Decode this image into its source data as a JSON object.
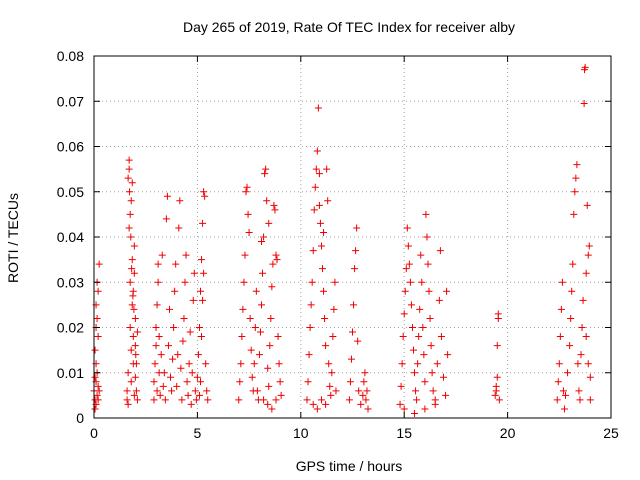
{
  "chart_data": {
    "type": "scatter",
    "title": "Day 265 of 2019, Rate Of TEC Index for receiver alby",
    "xlabel": "GPS time / hours",
    "ylabel": "ROTI / TECUs",
    "xlim": [
      0,
      25
    ],
    "ylim": [
      0,
      0.08
    ],
    "xticks": [
      0,
      5,
      10,
      15,
      20,
      25
    ],
    "xtick_labels": [
      "0",
      "5",
      "10",
      "15",
      "20",
      "25"
    ],
    "yticks": [
      0,
      0.01,
      0.02,
      0.03,
      0.04,
      0.05,
      0.06,
      0.07,
      0.08
    ],
    "ytick_labels": [
      "0",
      "0.01",
      "0.02",
      "0.03",
      "0.04",
      "0.05",
      "0.06",
      "0.07",
      "0.08"
    ],
    "grid": true,
    "marker": "plus",
    "color": "#ee0000",
    "series": [
      {
        "name": "ROTI",
        "points": [
          [
            0.0,
            0.006
          ],
          [
            0.05,
            0.004
          ],
          [
            0.05,
            0.009
          ],
          [
            0.05,
            0.015
          ],
          [
            0.1,
            0.003
          ],
          [
            0.1,
            0.008
          ],
          [
            0.1,
            0.012
          ],
          [
            0.1,
            0.02
          ],
          [
            0.1,
            0.025
          ],
          [
            0.15,
            0.005
          ],
          [
            0.15,
            0.01
          ],
          [
            0.15,
            0.03
          ],
          [
            0.2,
            0.004
          ],
          [
            0.2,
            0.007
          ],
          [
            0.2,
            0.018
          ],
          [
            0.25,
            0.034
          ],
          [
            0.2,
            0.028
          ],
          [
            0.15,
            0.022
          ],
          [
            0.05,
            0.002
          ],
          [
            0.25,
            0.006
          ],
          [
            1.6,
            0.004
          ],
          [
            1.6,
            0.006
          ],
          [
            1.65,
            0.01
          ],
          [
            1.65,
            0.053
          ],
          [
            1.7,
            0.057
          ],
          [
            1.7,
            0.055
          ],
          [
            1.7,
            0.042
          ],
          [
            1.75,
            0.045
          ],
          [
            1.75,
            0.03
          ],
          [
            1.75,
            0.02
          ],
          [
            1.8,
            0.015
          ],
          [
            1.8,
            0.008
          ],
          [
            1.8,
            0.048
          ],
          [
            1.85,
            0.025
          ],
          [
            1.85,
            0.035
          ],
          [
            1.85,
            0.052
          ],
          [
            1.9,
            0.012
          ],
          [
            1.9,
            0.018
          ],
          [
            1.9,
            0.028
          ],
          [
            1.95,
            0.005
          ],
          [
            1.95,
            0.032
          ],
          [
            1.95,
            0.038
          ],
          [
            2.0,
            0.009
          ],
          [
            2.0,
            0.022
          ],
          [
            2.0,
            0.016
          ],
          [
            2.05,
            0.006
          ],
          [
            2.05,
            0.012
          ],
          [
            2.1,
            0.004
          ],
          [
            2.1,
            0.019
          ],
          [
            1.65,
            0.003
          ],
          [
            1.72,
            0.05
          ],
          [
            1.78,
            0.04
          ],
          [
            1.82,
            0.033
          ],
          [
            1.88,
            0.027
          ],
          [
            1.93,
            0.024
          ],
          [
            2.02,
            0.014
          ],
          [
            2.9,
            0.004
          ],
          [
            2.9,
            0.008
          ],
          [
            2.95,
            0.012
          ],
          [
            3.0,
            0.016
          ],
          [
            3.0,
            0.02
          ],
          [
            3.05,
            0.006
          ],
          [
            3.05,
            0.025
          ],
          [
            3.1,
            0.03
          ],
          [
            3.1,
            0.034
          ],
          [
            3.15,
            0.01
          ],
          [
            3.15,
            0.018
          ],
          [
            3.2,
            0.005
          ],
          [
            3.25,
            0.014
          ],
          [
            3.3,
            0.036
          ],
          [
            3.35,
            0.007
          ],
          [
            3.4,
            0.01
          ],
          [
            3.45,
            0.004
          ],
          [
            3.5,
            0.044
          ],
          [
            3.55,
            0.049
          ],
          [
            3.6,
            0.016
          ],
          [
            3.65,
            0.024
          ],
          [
            3.7,
            0.009
          ],
          [
            3.75,
            0.006
          ],
          [
            3.8,
            0.013
          ],
          [
            3.85,
            0.02
          ],
          [
            3.9,
            0.028
          ],
          [
            3.95,
            0.034
          ],
          [
            4.0,
            0.007
          ],
          [
            4.05,
            0.014
          ],
          [
            4.1,
            0.042
          ],
          [
            4.15,
            0.048
          ],
          [
            4.2,
            0.011
          ],
          [
            4.25,
            0.004
          ],
          [
            4.3,
            0.017
          ],
          [
            4.35,
            0.022
          ],
          [
            4.4,
            0.03
          ],
          [
            4.45,
            0.036
          ],
          [
            4.5,
            0.008
          ],
          [
            4.55,
            0.005
          ],
          [
            4.6,
            0.012
          ],
          [
            4.65,
            0.019
          ],
          [
            4.7,
            0.003
          ],
          [
            4.75,
            0.01
          ],
          [
            4.8,
            0.026
          ],
          [
            4.85,
            0.032
          ],
          [
            4.9,
            0.006
          ],
          [
            4.95,
            0.004
          ],
          [
            5.0,
            0.009
          ],
          [
            5.05,
            0.014
          ],
          [
            5.1,
            0.02
          ],
          [
            5.15,
            0.028
          ],
          [
            5.2,
            0.035
          ],
          [
            5.25,
            0.043
          ],
          [
            5.3,
            0.05
          ],
          [
            5.35,
            0.049
          ],
          [
            5.3,
            0.032
          ],
          [
            5.25,
            0.026
          ],
          [
            5.2,
            0.018
          ],
          [
            5.15,
            0.008
          ],
          [
            5.1,
            0.005
          ],
          [
            5.4,
            0.012
          ],
          [
            5.45,
            0.006
          ],
          [
            5.5,
            0.004
          ],
          [
            7.0,
            0.004
          ],
          [
            7.05,
            0.008
          ],
          [
            7.1,
            0.012
          ],
          [
            7.15,
            0.018
          ],
          [
            7.2,
            0.024
          ],
          [
            7.25,
            0.03
          ],
          [
            7.3,
            0.036
          ],
          [
            7.35,
            0.05
          ],
          [
            7.4,
            0.051
          ],
          [
            7.45,
            0.045
          ],
          [
            7.5,
            0.041
          ],
          [
            7.55,
            0.022
          ],
          [
            7.6,
            0.015
          ],
          [
            7.65,
            0.009
          ],
          [
            7.7,
            0.006
          ],
          [
            7.75,
            0.012
          ],
          [
            7.8,
            0.02
          ],
          [
            7.85,
            0.028
          ],
          [
            7.9,
            0.006
          ],
          [
            7.95,
            0.004
          ],
          [
            8.0,
            0.014
          ],
          [
            8.05,
            0.019
          ],
          [
            8.1,
            0.025
          ],
          [
            8.15,
            0.032
          ],
          [
            8.2,
            0.04
          ],
          [
            8.25,
            0.054
          ],
          [
            8.3,
            0.055
          ],
          [
            8.35,
            0.048
          ],
          [
            8.4,
            0.011
          ],
          [
            8.45,
            0.007
          ],
          [
            8.5,
            0.016
          ],
          [
            8.55,
            0.022
          ],
          [
            8.6,
            0.029
          ],
          [
            8.65,
            0.034
          ],
          [
            8.7,
            0.047
          ],
          [
            8.75,
            0.046
          ],
          [
            8.8,
            0.036
          ],
          [
            8.85,
            0.035
          ],
          [
            8.9,
            0.018
          ],
          [
            8.95,
            0.012
          ],
          [
            9.0,
            0.008
          ],
          [
            9.05,
            0.005
          ],
          [
            8.2,
            0.004
          ],
          [
            8.4,
            0.003
          ],
          [
            8.6,
            0.002
          ],
          [
            8.8,
            0.004
          ],
          [
            8.45,
            0.043
          ],
          [
            8.1,
            0.039
          ],
          [
            10.3,
            0.004
          ],
          [
            10.35,
            0.008
          ],
          [
            10.4,
            0.014
          ],
          [
            10.45,
            0.02
          ],
          [
            10.5,
            0.025
          ],
          [
            10.55,
            0.03
          ],
          [
            10.6,
            0.037
          ],
          [
            10.65,
            0.046
          ],
          [
            10.7,
            0.051
          ],
          [
            10.75,
            0.055
          ],
          [
            10.8,
            0.059
          ],
          [
            10.85,
            0.0685
          ],
          [
            10.9,
            0.054
          ],
          [
            10.95,
            0.043
          ],
          [
            11.0,
            0.038
          ],
          [
            11.05,
            0.033
          ],
          [
            11.1,
            0.028
          ],
          [
            11.15,
            0.022
          ],
          [
            11.2,
            0.016
          ],
          [
            11.25,
            0.055
          ],
          [
            11.3,
            0.048
          ],
          [
            11.35,
            0.012
          ],
          [
            11.4,
            0.007
          ],
          [
            11.45,
            0.005
          ],
          [
            11.5,
            0.01
          ],
          [
            11.55,
            0.018
          ],
          [
            11.6,
            0.024
          ],
          [
            11.65,
            0.03
          ],
          [
            11.7,
            0.006
          ],
          [
            10.6,
            0.003
          ],
          [
            10.8,
            0.002
          ],
          [
            11.0,
            0.004
          ],
          [
            11.2,
            0.003
          ],
          [
            10.9,
            0.047
          ],
          [
            11.1,
            0.041
          ],
          [
            12.35,
            0.004
          ],
          [
            12.4,
            0.008
          ],
          [
            12.45,
            0.013
          ],
          [
            12.5,
            0.019
          ],
          [
            12.55,
            0.025
          ],
          [
            12.6,
            0.033
          ],
          [
            12.65,
            0.037
          ],
          [
            12.7,
            0.042
          ],
          [
            12.75,
            0.017
          ],
          [
            12.8,
            0.006
          ],
          [
            12.9,
            0.003
          ],
          [
            13.0,
            0.005
          ],
          [
            13.05,
            0.008
          ],
          [
            13.1,
            0.01
          ],
          [
            13.15,
            0.004
          ],
          [
            13.2,
            0.006
          ],
          [
            13.25,
            0.002
          ],
          [
            14.8,
            0.003
          ],
          [
            14.85,
            0.007
          ],
          [
            14.9,
            0.012
          ],
          [
            14.95,
            0.018
          ],
          [
            15.0,
            0.023
          ],
          [
            15.05,
            0.028
          ],
          [
            15.1,
            0.033
          ],
          [
            15.15,
            0.042
          ],
          [
            15.2,
            0.038
          ],
          [
            15.25,
            0.034
          ],
          [
            15.3,
            0.03
          ],
          [
            15.35,
            0.025
          ],
          [
            15.4,
            0.02
          ],
          [
            15.45,
            0.015
          ],
          [
            15.5,
            0.01
          ],
          [
            15.55,
            0.006
          ],
          [
            15.6,
            0.004
          ],
          [
            15.65,
            0.012
          ],
          [
            15.7,
            0.018
          ],
          [
            15.75,
            0.024
          ],
          [
            15.8,
            0.036
          ],
          [
            15.85,
            0.03
          ],
          [
            15.9,
            0.02
          ],
          [
            15.95,
            0.014
          ],
          [
            16.0,
            0.008
          ],
          [
            16.05,
            0.045
          ],
          [
            16.1,
            0.04
          ],
          [
            16.15,
            0.034
          ],
          [
            16.2,
            0.028
          ],
          [
            16.25,
            0.022
          ],
          [
            16.3,
            0.016
          ],
          [
            16.35,
            0.01
          ],
          [
            16.4,
            0.006
          ],
          [
            16.5,
            0.004
          ],
          [
            16.6,
            0.012
          ],
          [
            16.7,
            0.026
          ],
          [
            16.75,
            0.037
          ],
          [
            16.8,
            0.018
          ],
          [
            16.9,
            0.009
          ],
          [
            17.0,
            0.005
          ],
          [
            17.05,
            0.028
          ],
          [
            17.1,
            0.014
          ],
          [
            15.0,
            0.002
          ],
          [
            15.5,
            0.001
          ],
          [
            16.0,
            0.002
          ],
          [
            16.5,
            0.003
          ],
          [
            19.4,
            0.005
          ],
          [
            19.45,
            0.007
          ],
          [
            19.5,
            0.009
          ],
          [
            19.5,
            0.016
          ],
          [
            19.55,
            0.022
          ],
          [
            19.55,
            0.023
          ],
          [
            19.6,
            0.004
          ],
          [
            19.45,
            0.006
          ],
          [
            22.4,
            0.004
          ],
          [
            22.45,
            0.008
          ],
          [
            22.5,
            0.012
          ],
          [
            22.55,
            0.018
          ],
          [
            22.6,
            0.024
          ],
          [
            22.65,
            0.03
          ],
          [
            22.7,
            0.006
          ],
          [
            22.75,
            0.002
          ],
          [
            22.8,
            0.005
          ],
          [
            22.9,
            0.01
          ],
          [
            23.0,
            0.016
          ],
          [
            23.05,
            0.022
          ],
          [
            23.1,
            0.028
          ],
          [
            23.15,
            0.034
          ],
          [
            23.2,
            0.045
          ],
          [
            23.25,
            0.05
          ],
          [
            23.3,
            0.053
          ],
          [
            23.35,
            0.056
          ],
          [
            23.4,
            0.012
          ],
          [
            23.45,
            0.006
          ],
          [
            23.5,
            0.004
          ],
          [
            23.55,
            0.014
          ],
          [
            23.6,
            0.02
          ],
          [
            23.65,
            0.026
          ],
          [
            23.7,
            0.0695
          ],
          [
            23.72,
            0.077
          ],
          [
            23.75,
            0.0775
          ],
          [
            23.8,
            0.032
          ],
          [
            23.85,
            0.047
          ],
          [
            23.9,
            0.036
          ],
          [
            23.95,
            0.038
          ],
          [
            24.0,
            0.009
          ],
          [
            24.0,
            0.004
          ],
          [
            23.9,
            0.012
          ],
          [
            23.8,
            0.018
          ]
        ]
      }
    ]
  }
}
